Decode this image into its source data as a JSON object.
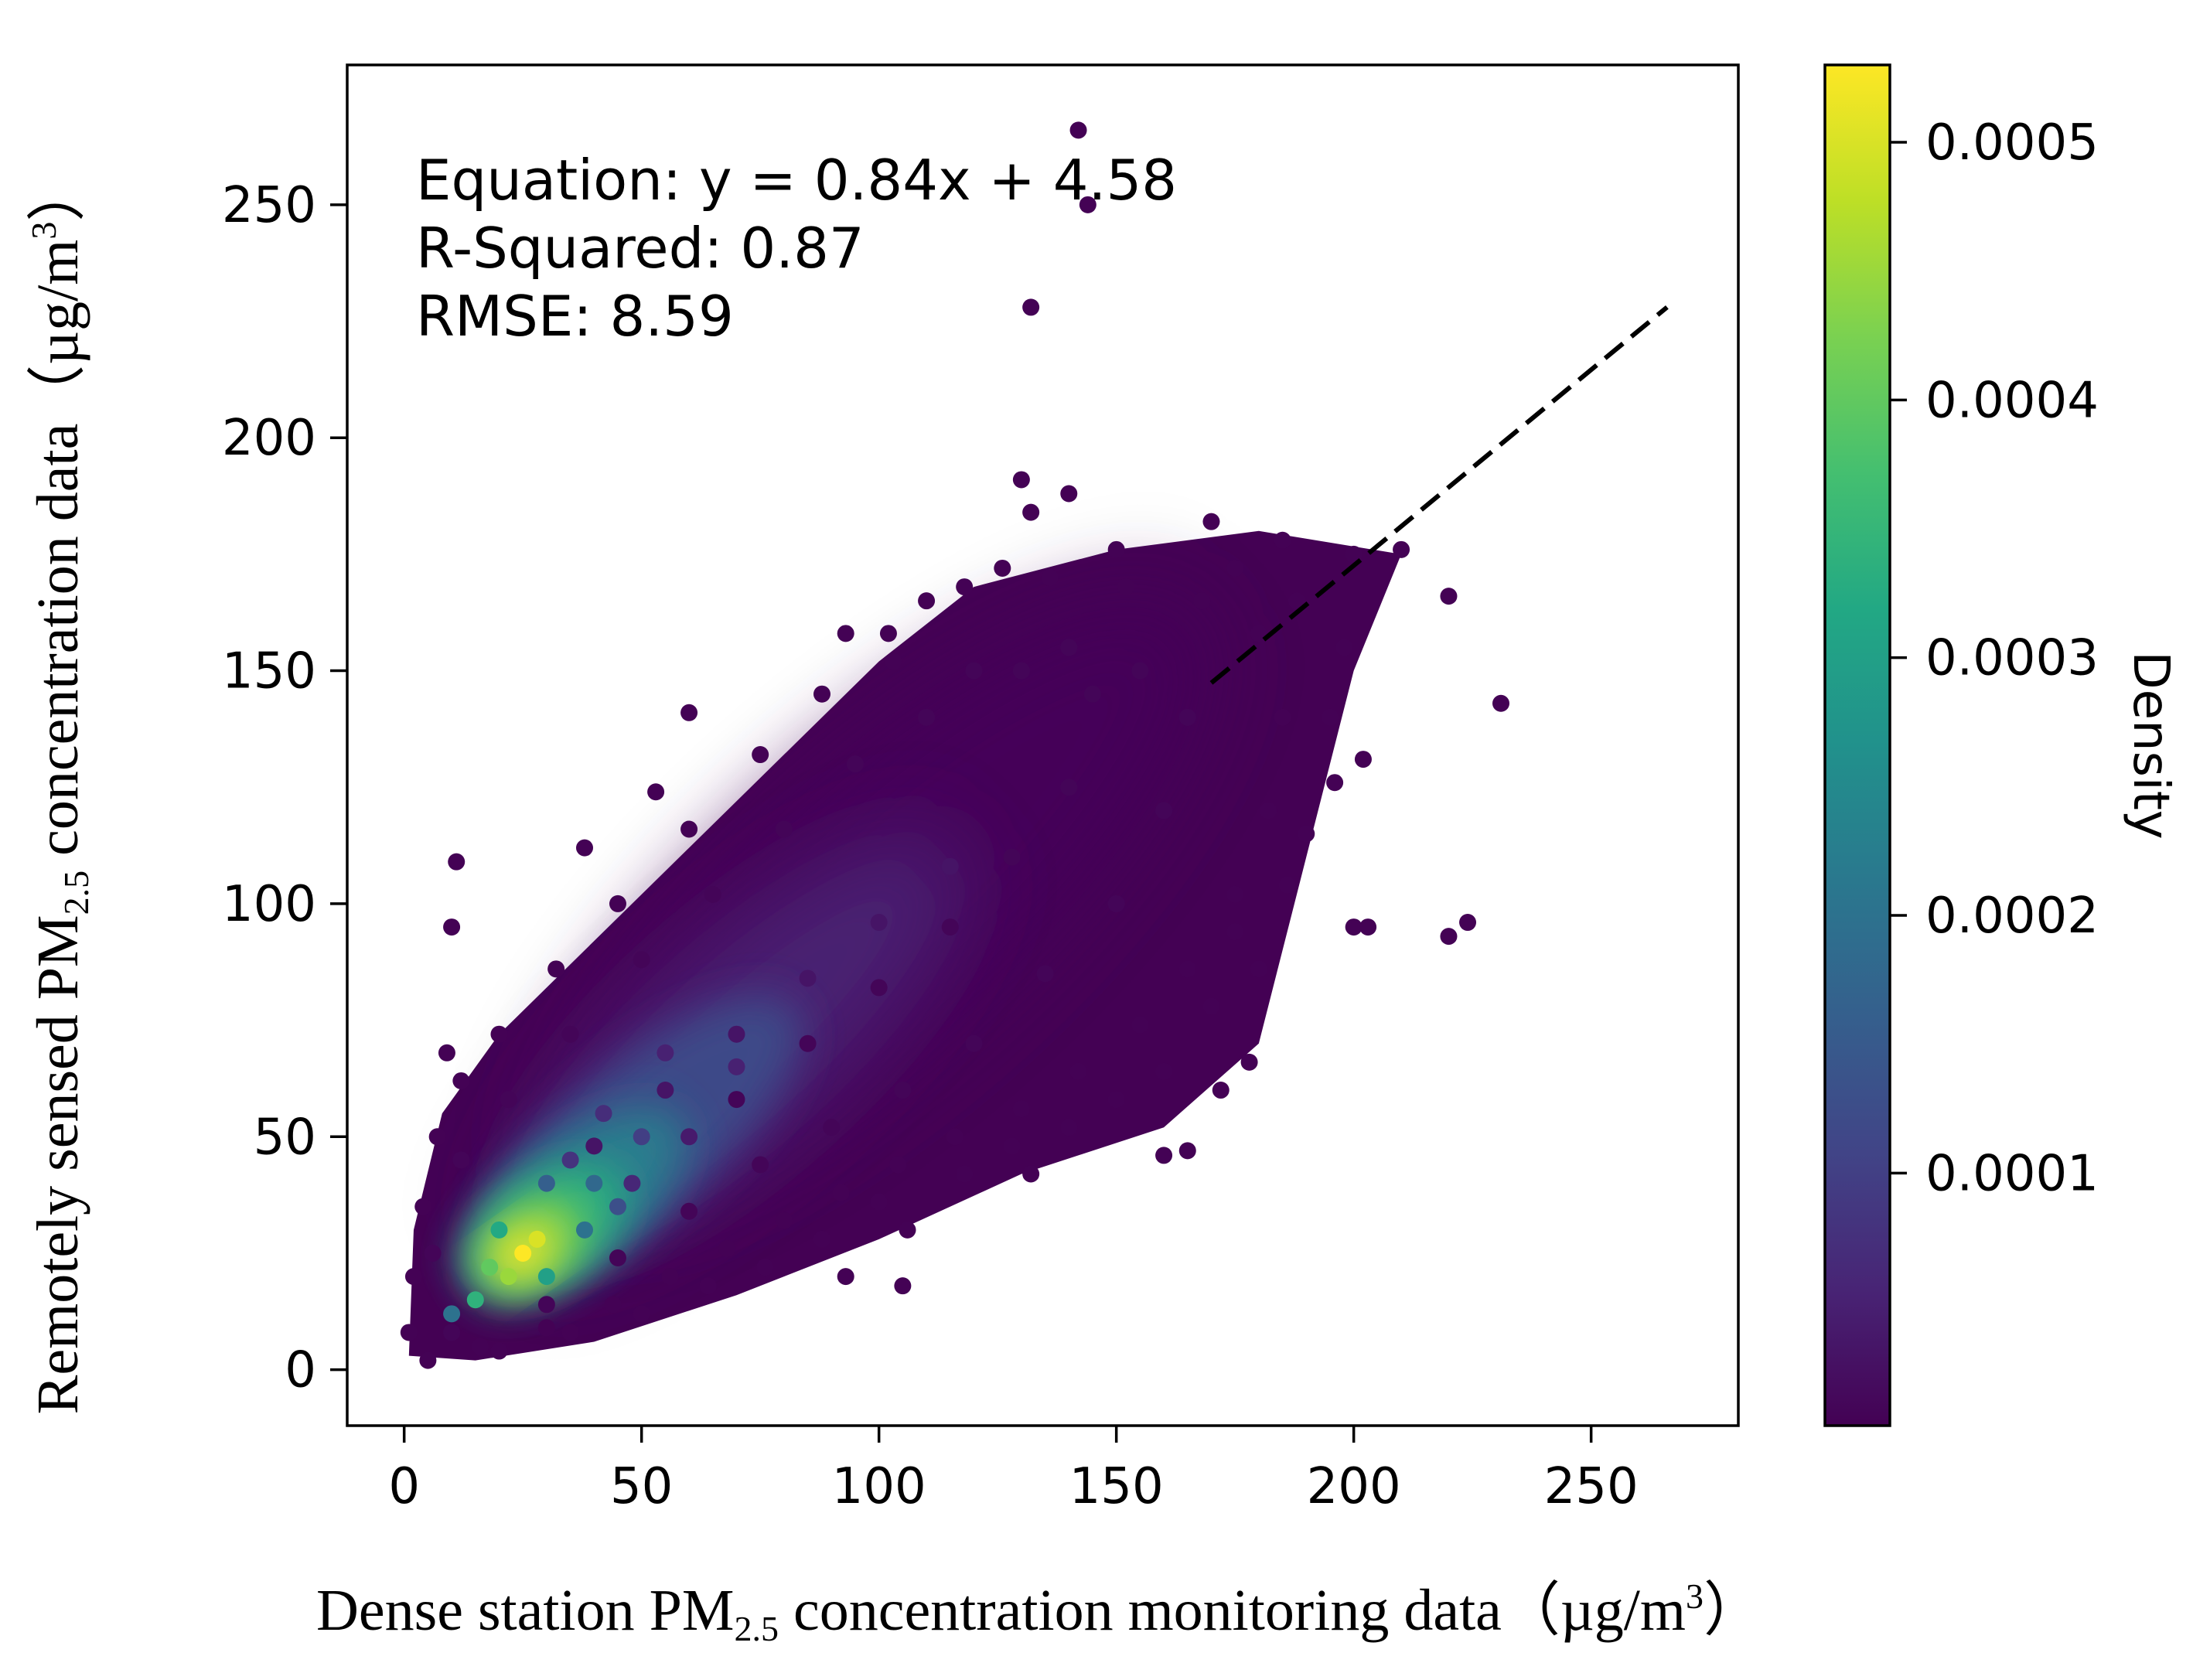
{
  "chart_data": {
    "type": "scatter",
    "subtype": "density-scatter",
    "xlabel": {
      "prefix": "Dense station PM",
      "subscript": "2.5",
      "mid": " concentration monitoring data（µg/m",
      "superscript": "3",
      "suffix": "）"
    },
    "ylabel": {
      "prefix": "Remotely sensed PM",
      "subscript": "2.5",
      "mid": " concentration data（µg/m",
      "superscript": "3",
      "suffix": "）"
    },
    "xlim": [
      -12,
      281
    ],
    "ylim": [
      -12,
      280
    ],
    "xticks": [
      0,
      50,
      100,
      150,
      200,
      250
    ],
    "yticks": [
      0,
      50,
      100,
      150,
      200,
      250
    ],
    "annotations": [
      "Equation: y = 0.84x + 4.58",
      "R-Squared: 0.87",
      "RMSE: 8.59"
    ],
    "fit_line": {
      "slope": 0.84,
      "intercept": 4.58,
      "x_range": [
        170,
        266
      ],
      "style": "dashed",
      "color": "#000000"
    },
    "colorbar": {
      "label": "Density",
      "range": [
        2e-06,
        0.00053
      ],
      "ticks": [
        0.0001,
        0.0002,
        0.0003,
        0.0004,
        0.0005
      ],
      "tick_labels": [
        "0.0001",
        "0.0002",
        "0.0003",
        "0.0004",
        "0.0005"
      ],
      "colormap": "viridis"
    },
    "density_peak": {
      "x": 25,
      "y": 25
    },
    "points": [
      [
        142,
        266,
        3e-06
      ],
      [
        144,
        250,
        3e-06
      ],
      [
        132,
        228,
        3e-06
      ],
      [
        130,
        191,
        3e-06
      ],
      [
        140,
        188,
        3e-06
      ],
      [
        132,
        184,
        3e-06
      ],
      [
        170,
        182,
        3e-06
      ],
      [
        185,
        178,
        3e-06
      ],
      [
        200,
        175,
        3e-06
      ],
      [
        210,
        176,
        3e-06
      ],
      [
        220,
        166,
        3e-06
      ],
      [
        231,
        143,
        3e-06
      ],
      [
        224,
        96,
        3e-06
      ],
      [
        220,
        93,
        3e-06
      ],
      [
        203,
        95,
        3e-06
      ],
      [
        200,
        95,
        3e-06
      ],
      [
        202,
        131,
        3e-06
      ],
      [
        196,
        126,
        3e-06
      ],
      [
        180,
        86,
        3e-06
      ],
      [
        178,
        66,
        3e-06
      ],
      [
        172,
        60,
        3e-06
      ],
      [
        165,
        47,
        3e-06
      ],
      [
        160,
        46,
        3e-06
      ],
      [
        132,
        42,
        3e-06
      ],
      [
        106,
        30,
        3e-06
      ],
      [
        105,
        18,
        3e-06
      ],
      [
        93,
        20,
        3e-06
      ],
      [
        11,
        109,
        3e-06
      ],
      [
        10,
        95,
        3e-06
      ],
      [
        38,
        112,
        3e-06
      ],
      [
        60,
        141,
        3e-06
      ],
      [
        53,
        124,
        3e-06
      ],
      [
        9,
        68,
        3e-06
      ],
      [
        93,
        158,
        3e-06
      ],
      [
        103,
        152,
        3e-06
      ],
      [
        110,
        165,
        3e-06
      ],
      [
        126,
        172,
        4e-06
      ],
      [
        150,
        176,
        4e-06
      ],
      [
        175,
        172,
        4e-06
      ],
      [
        188,
        165,
        4e-06
      ],
      [
        198,
        155,
        4e-06
      ],
      [
        195,
        140,
        4e-06
      ],
      [
        190,
        115,
        4e-06
      ],
      [
        186,
        104,
        4e-06
      ],
      [
        175,
        94,
        4e-06
      ],
      [
        170,
        78,
        4e-06
      ],
      [
        160,
        64,
        4e-06
      ],
      [
        150,
        58,
        4e-06
      ],
      [
        140,
        52,
        4e-06
      ],
      [
        128,
        48,
        4e-06
      ],
      [
        118,
        42,
        4e-06
      ],
      [
        100,
        36,
        4e-06
      ],
      [
        88,
        28,
        4e-06
      ],
      [
        76,
        22,
        4e-06
      ],
      [
        64,
        18,
        4e-06
      ],
      [
        50,
        12,
        4e-06
      ],
      [
        35,
        8,
        4e-06
      ],
      [
        20,
        4,
        4e-06
      ],
      [
        5,
        2,
        4e-06
      ],
      [
        1,
        8,
        4e-06
      ],
      [
        2,
        20,
        4e-06
      ],
      [
        4,
        35,
        4e-06
      ],
      [
        7,
        50,
        4e-06
      ],
      [
        12,
        62,
        4e-06
      ],
      [
        20,
        72,
        4e-06
      ],
      [
        32,
        86,
        4e-06
      ],
      [
        45,
        100,
        4e-06
      ],
      [
        60,
        116,
        4e-06
      ],
      [
        75,
        132,
        4e-06
      ],
      [
        88,
        145,
        4e-06
      ],
      [
        102,
        158,
        4e-06
      ],
      [
        118,
        168,
        4e-06
      ],
      [
        136,
        170,
        4e-06
      ],
      [
        152,
        168,
        4e-06
      ],
      [
        168,
        165,
        4e-06
      ],
      [
        180,
        158,
        4e-06
      ],
      [
        185,
        140,
        4e-06
      ],
      [
        182,
        120,
        4e-06
      ],
      [
        175,
        102,
        4e-06
      ],
      [
        165,
        86,
        4e-06
      ],
      [
        155,
        74,
        4e-06
      ],
      [
        142,
        64,
        4e-06
      ],
      [
        130,
        56,
        4e-06
      ],
      [
        116,
        50,
        4e-06
      ],
      [
        104,
        44,
        4e-06
      ],
      [
        92,
        38,
        4e-06
      ],
      [
        80,
        32,
        4e-06
      ],
      [
        68,
        26,
        4e-06
      ],
      [
        56,
        20,
        4e-06
      ],
      [
        44,
        14,
        4e-06
      ],
      [
        30,
        9,
        4e-06
      ],
      [
        16,
        5,
        4e-06
      ],
      [
        120,
        150,
        8e-06
      ],
      [
        140,
        155,
        8e-06
      ],
      [
        155,
        150,
        8e-06
      ],
      [
        165,
        140,
        8e-06
      ],
      [
        160,
        120,
        8e-06
      ],
      [
        150,
        100,
        8e-06
      ],
      [
        135,
        85,
        8e-06
      ],
      [
        120,
        70,
        8e-06
      ],
      [
        105,
        60,
        8e-06
      ],
      [
        90,
        52,
        8e-06
      ],
      [
        75,
        44,
        8e-06
      ],
      [
        60,
        34,
        8e-06
      ],
      [
        45,
        24,
        8e-06
      ],
      [
        30,
        14,
        8e-06
      ],
      [
        10,
        8,
        8e-06
      ],
      [
        6,
        25,
        8e-06
      ],
      [
        12,
        45,
        8e-06
      ],
      [
        22,
        58,
        8e-06
      ],
      [
        35,
        72,
        8e-06
      ],
      [
        50,
        88,
        8e-06
      ],
      [
        65,
        102,
        8e-06
      ],
      [
        80,
        116,
        8e-06
      ],
      [
        95,
        130,
        8e-06
      ],
      [
        110,
        140,
        8e-06
      ],
      [
        130,
        150,
        8e-06
      ],
      [
        145,
        145,
        8e-06
      ],
      [
        140,
        125,
        8e-06
      ],
      [
        128,
        110,
        8e-06
      ],
      [
        115,
        95,
        8e-06
      ],
      [
        100,
        82,
        8e-06
      ],
      [
        85,
        70,
        8e-06
      ],
      [
        70,
        58,
        8e-06
      ],
      [
        40,
        48,
        3e-05
      ],
      [
        55,
        60,
        3e-05
      ],
      [
        70,
        72,
        3e-05
      ],
      [
        85,
        84,
        3e-05
      ],
      [
        100,
        96,
        3e-05
      ],
      [
        115,
        108,
        3e-05
      ],
      [
        60,
        50,
        4e-05
      ],
      [
        48,
        40,
        6e-05
      ],
      [
        35,
        45,
        8e-05
      ],
      [
        42,
        55,
        7e-05
      ],
      [
        55,
        68,
        5e-05
      ],
      [
        70,
        65,
        5e-05
      ],
      [
        50,
        50,
        0.0001
      ],
      [
        45,
        35,
        0.00013
      ],
      [
        30,
        40,
        0.00016
      ],
      [
        38,
        30,
        0.0002
      ],
      [
        40,
        40,
        0.00018
      ],
      [
        30,
        20,
        0.0003
      ],
      [
        20,
        30,
        0.00032
      ],
      [
        15,
        15,
        0.00034
      ],
      [
        10,
        12,
        0.0002
      ],
      [
        18,
        22,
        0.0004
      ],
      [
        22,
        20,
        0.00045
      ],
      [
        28,
        28,
        0.0005
      ],
      [
        25,
        25,
        0.00053
      ]
    ]
  }
}
